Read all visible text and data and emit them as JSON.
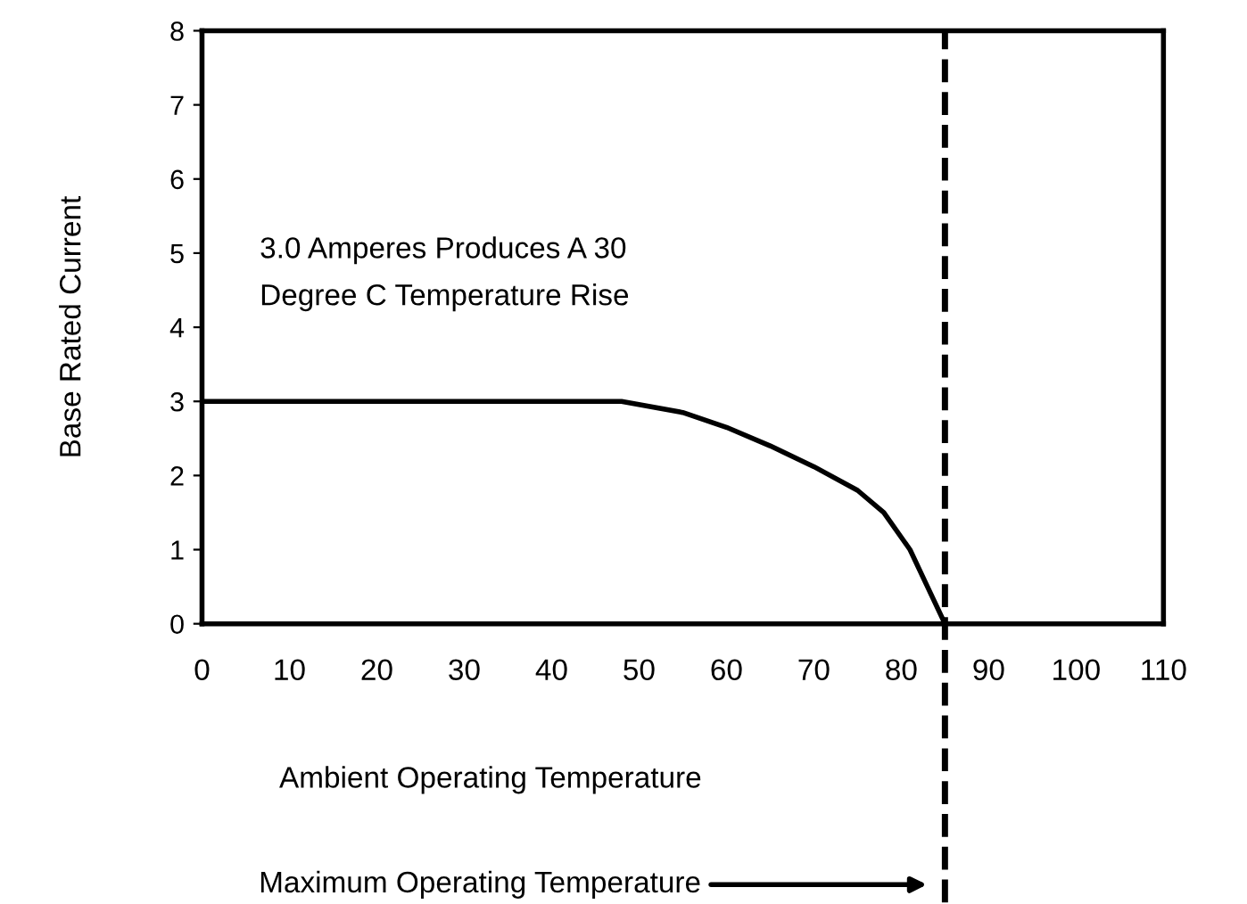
{
  "chart_data": {
    "type": "line",
    "xlabel": "Ambient Operating Temperature",
    "ylabel": "Base Rated Current",
    "x": [
      0,
      48,
      55,
      60,
      65,
      70,
      75,
      78,
      81,
      83,
      85
    ],
    "series": [
      {
        "color": "#000000",
        "values": [
          3,
          3,
          2.85,
          2.65,
          2.4,
          2.12,
          1.8,
          1.5,
          1.0,
          0.5,
          0
        ]
      }
    ],
    "xlim": [
      0,
      110
    ],
    "ylim": [
      0,
      8
    ],
    "xticks": [
      0,
      10,
      20,
      30,
      40,
      50,
      60,
      70,
      80,
      90,
      100,
      110
    ],
    "yticks": [
      0,
      1,
      2,
      3,
      4,
      5,
      6,
      7,
      8
    ],
    "annotations": [
      "3.0 Amperes Produces A 30\nDegree C Temperature Rise"
    ],
    "ref_lines": [
      {
        "axis": "x",
        "value": 85,
        "label": "Maximum Operating Temperature",
        "line_style": "dashed",
        "color": "#000000"
      }
    ],
    "grid": false,
    "legend": false,
    "marker": "none",
    "line_style": "solid"
  }
}
